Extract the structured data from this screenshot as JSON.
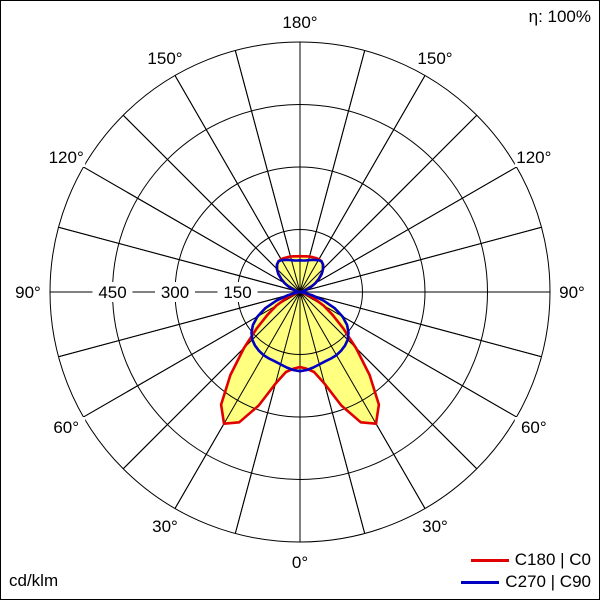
{
  "chart_data": {
    "type": "polar",
    "efficiency_label": "η: 100%",
    "units_label": "cd/klm",
    "radial_ticks": [
      "150",
      "300",
      "450"
    ],
    "radial_values": [
      150,
      300,
      450
    ],
    "radial_max": 600,
    "angle_labels": [
      {
        "text": "180°",
        "angle": 180,
        "side": "center"
      },
      {
        "text": "150°",
        "angle": 150,
        "side": "left"
      },
      {
        "text": "150°",
        "angle": 150,
        "side": "right"
      },
      {
        "text": "120°",
        "angle": 120,
        "side": "left"
      },
      {
        "text": "120°",
        "angle": 120,
        "side": "right"
      },
      {
        "text": "90°",
        "angle": 90,
        "side": "left"
      },
      {
        "text": "90°",
        "angle": 90,
        "side": "right"
      },
      {
        "text": "60°",
        "angle": 60,
        "side": "left"
      },
      {
        "text": "60°",
        "angle": 60,
        "side": "right"
      },
      {
        "text": "30°",
        "angle": 30,
        "side": "left"
      },
      {
        "text": "30°",
        "angle": 30,
        "side": "right"
      },
      {
        "text": "0°",
        "angle": 0,
        "side": "center"
      }
    ],
    "fill_color": "#ffff80",
    "series": [
      {
        "name": "C180 | C0",
        "color": "#e00000",
        "angles": [
          0,
          5,
          10,
          15,
          20,
          25,
          30,
          35,
          40,
          45,
          50,
          55,
          60,
          65,
          70,
          75,
          80,
          85,
          90,
          95,
          100,
          105,
          110,
          115,
          120,
          125,
          130,
          135,
          140,
          145,
          150,
          155,
          160,
          165,
          170,
          175,
          180
        ],
        "left": [
          180,
          185,
          195,
          228,
          290,
          345,
          365,
          330,
          260,
          190,
          135,
          95,
          65,
          38,
          20,
          8,
          2,
          0,
          0,
          2,
          6,
          12,
          20,
          30,
          42,
          55,
          68,
          78,
          86,
          90,
          91,
          90,
          89,
          88,
          87,
          86,
          86
        ],
        "right": [
          180,
          185,
          195,
          228,
          290,
          345,
          365,
          330,
          260,
          190,
          135,
          95,
          65,
          38,
          20,
          8,
          2,
          0,
          0,
          2,
          6,
          12,
          20,
          30,
          42,
          55,
          68,
          78,
          86,
          90,
          91,
          90,
          89,
          88,
          87,
          86,
          86
        ]
      },
      {
        "name": "C270 | C90",
        "color": "#0000c0",
        "angles": [
          0,
          5,
          10,
          15,
          20,
          25,
          30,
          35,
          40,
          45,
          50,
          55,
          60,
          65,
          70,
          75,
          80,
          85,
          90,
          95,
          100,
          105,
          110,
          115,
          120,
          125,
          130,
          135,
          140,
          145,
          150,
          155,
          160,
          165,
          170,
          175,
          180
        ],
        "left": [
          190,
          188,
          184,
          180,
          177,
          176,
          175,
          172,
          168,
          162,
          152,
          138,
          118,
          92,
          60,
          30,
          10,
          2,
          0,
          2,
          6,
          12,
          20,
          30,
          42,
          55,
          68,
          78,
          86,
          90,
          88,
          85,
          82,
          79,
          77,
          76,
          76
        ],
        "right": [
          190,
          188,
          184,
          180,
          177,
          176,
          175,
          172,
          168,
          162,
          152,
          138,
          118,
          92,
          60,
          30,
          10,
          2,
          0,
          2,
          6,
          12,
          20,
          30,
          42,
          55,
          68,
          78,
          86,
          90,
          88,
          85,
          82,
          79,
          77,
          76,
          76
        ]
      }
    ],
    "legend": [
      {
        "label": "C180 | C0",
        "color": "#e00000"
      },
      {
        "label": "C270 | C90",
        "color": "#0000c0"
      }
    ]
  }
}
